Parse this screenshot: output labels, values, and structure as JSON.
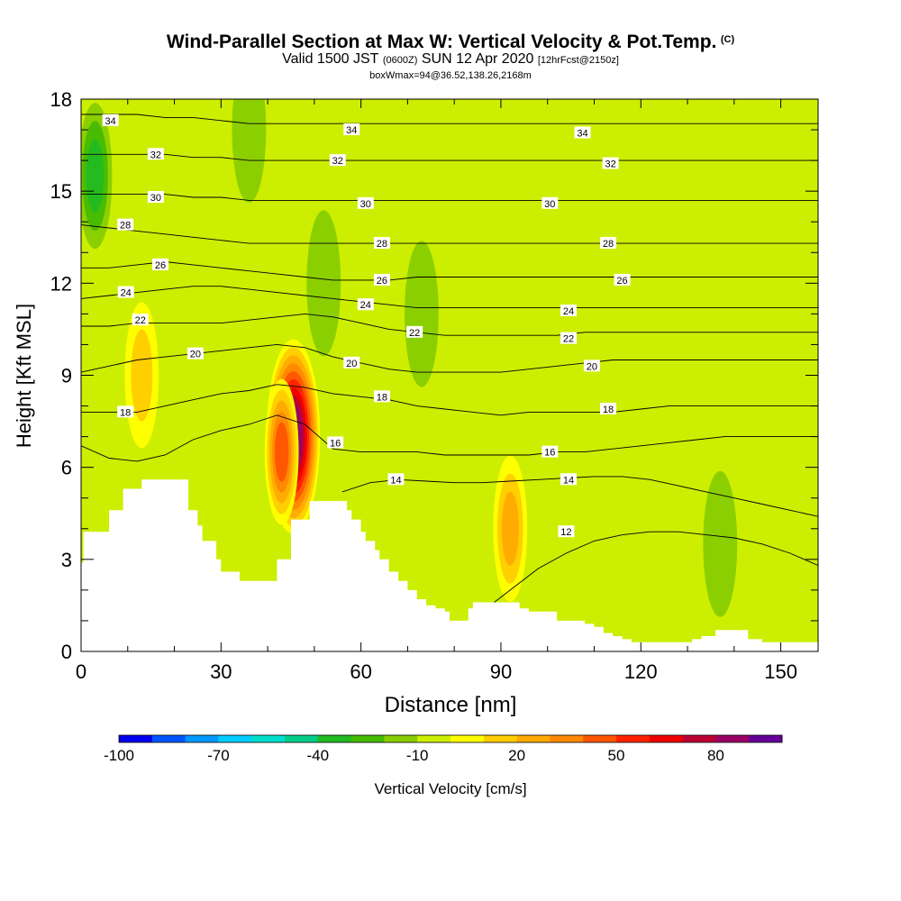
{
  "title": {
    "main": "Wind-Parallel Section at Max W: Vertical Velocity & Pot.Temp.",
    "copyright": "(C)",
    "valid_prefix": "Valid 1500 JST",
    "valid_utc": "(0600Z)",
    "valid_date": "SUN 12 Apr 2020",
    "forecast": "[12hrFcst@2150z]",
    "box_info": "boxWmax=94@36.52,138.26,2168m"
  },
  "colors": {
    "background_field": "#ccee00",
    "terrain": "#ffffff",
    "contour": "#000000"
  },
  "chart_data": {
    "type": "heatmap",
    "xlabel": "Distance [nm]",
    "ylabel": "Height [Kft MSL]",
    "xlim": [
      0,
      158
    ],
    "ylim": [
      0,
      18
    ],
    "x_ticks": [
      0,
      30,
      60,
      90,
      120,
      150
    ],
    "y_ticks": [
      0,
      3,
      6,
      9,
      12,
      15,
      18
    ],
    "colorbar": {
      "label": "Vertical Velocity [cm/s]",
      "tick_labels": [
        -100,
        -70,
        -40,
        -10,
        20,
        50,
        80
      ],
      "levels": [
        -100,
        -90,
        -80,
        -70,
        -60,
        -50,
        -40,
        -30,
        -20,
        -10,
        0,
        10,
        20,
        30,
        40,
        50,
        60,
        70,
        80,
        90
      ],
      "colors": [
        "#0000ee",
        "#0055ff",
        "#0099ff",
        "#00ccff",
        "#00ddcc",
        "#00cc88",
        "#22bb22",
        "#44bb00",
        "#88cc00",
        "#ccee00",
        "#ffff00",
        "#ffcc00",
        "#ffaa00",
        "#ff8800",
        "#ff5500",
        "#ff2200",
        "#ee0000",
        "#bb0033",
        "#990066",
        "#660099"
      ]
    },
    "max_w": 94,
    "terrain_profile": {
      "x": [
        0,
        0.5,
        3,
        6,
        7,
        9,
        10,
        13,
        16,
        18,
        20,
        22,
        23,
        25,
        26,
        29,
        30,
        32,
        34,
        36,
        38,
        40,
        42,
        44,
        45,
        46,
        48,
        49,
        51,
        53,
        55,
        57,
        58,
        60,
        61,
        63,
        64,
        66,
        68,
        70,
        72,
        74,
        76,
        78,
        79,
        81,
        83,
        84,
        87,
        88,
        92,
        94,
        96,
        100,
        102,
        106,
        108,
        110,
        112,
        114,
        116,
        118,
        120,
        122,
        124,
        126,
        128,
        131,
        133,
        136,
        138,
        141,
        143,
        146,
        148,
        153,
        158
      ],
      "y": [
        2.9,
        3.9,
        3.9,
        4.6,
        4.6,
        5.3,
        5.3,
        5.6,
        5.6,
        5.6,
        5.6,
        5.6,
        4.6,
        4.1,
        3.6,
        3.0,
        2.6,
        2.6,
        2.3,
        2.3,
        2.3,
        2.3,
        3.0,
        3.0,
        4.3,
        4.3,
        4.3,
        4.9,
        4.9,
        4.9,
        4.9,
        4.6,
        4.3,
        3.9,
        3.6,
        3.3,
        3.0,
        2.6,
        2.3,
        2.0,
        1.7,
        1.5,
        1.4,
        1.3,
        1.0,
        1.0,
        1.4,
        1.6,
        1.6,
        1.6,
        1.6,
        1.4,
        1.3,
        1.3,
        1.0,
        1.0,
        0.9,
        0.8,
        0.6,
        0.5,
        0.4,
        0.3,
        0.3,
        0.3,
        0.3,
        0.3,
        0.3,
        0.4,
        0.5,
        0.7,
        0.7,
        0.7,
        0.4,
        0.3,
        0.3,
        0.3,
        0.3
      ]
    },
    "w_features": [
      {
        "x": 45.5,
        "y": 7.0,
        "peak": 94
      },
      {
        "x": 43.0,
        "y": 6.5,
        "peak": 45
      },
      {
        "x": 13.0,
        "y": 9.0,
        "peak": 20
      },
      {
        "x": 3.0,
        "y": 15.5,
        "peak": -35
      },
      {
        "x": 36.0,
        "y": 17.0,
        "peak": -20
      },
      {
        "x": 52.0,
        "y": 12.0,
        "peak": -20
      },
      {
        "x": 73.0,
        "y": 11.0,
        "peak": -20
      },
      {
        "x": 92.0,
        "y": 4.0,
        "peak": 25
      },
      {
        "x": 137.0,
        "y": 3.5,
        "peak": -20
      }
    ],
    "theta_contours": [
      {
        "label": "12",
        "x": [
          86,
          92,
          98,
          104,
          110,
          116,
          122,
          128,
          134,
          140,
          146,
          152,
          158
        ],
        "y": [
          1.3,
          2.0,
          2.7,
          3.2,
          3.6,
          3.8,
          3.9,
          3.9,
          3.8,
          3.7,
          3.5,
          3.2,
          2.8
        ]
      },
      {
        "label": "14",
        "x": [
          56,
          62,
          68,
          74,
          80,
          86,
          92,
          98,
          104,
          110,
          116,
          122,
          128,
          134,
          140,
          146,
          152,
          158
        ],
        "y": [
          5.2,
          5.5,
          5.6,
          5.55,
          5.5,
          5.5,
          5.55,
          5.6,
          5.65,
          5.7,
          5.7,
          5.6,
          5.4,
          5.2,
          5.0,
          4.8,
          4.6,
          4.4
        ]
      },
      {
        "label": "16",
        "x": [
          0,
          6,
          12,
          18,
          24,
          30,
          36,
          42,
          48,
          54,
          60,
          66,
          72,
          78,
          84,
          90,
          96,
          102,
          108,
          114,
          120,
          126,
          132,
          138,
          144,
          150,
          158
        ],
        "y": [
          6.7,
          6.3,
          6.2,
          6.4,
          6.9,
          7.2,
          7.4,
          7.7,
          7.4,
          6.6,
          6.5,
          6.5,
          6.5,
          6.4,
          6.4,
          6.4,
          6.4,
          6.5,
          6.5,
          6.6,
          6.7,
          6.8,
          6.9,
          7.0,
          7.0,
          7.0,
          7.0
        ]
      },
      {
        "label": "18",
        "x": [
          0,
          6,
          12,
          18,
          24,
          30,
          36,
          42,
          48,
          54,
          60,
          66,
          72,
          78,
          84,
          90,
          96,
          102,
          108,
          114,
          120,
          126,
          132,
          138,
          144,
          150,
          158
        ],
        "y": [
          7.8,
          7.8,
          7.8,
          8.0,
          8.2,
          8.4,
          8.5,
          8.7,
          8.6,
          8.4,
          8.3,
          8.2,
          8.0,
          7.9,
          7.8,
          7.7,
          7.8,
          7.8,
          7.8,
          7.8,
          7.9,
          8.0,
          8.0,
          8.0,
          8.0,
          8.0,
          8.0
        ]
      },
      {
        "label": "20",
        "x": [
          0,
          6,
          12,
          18,
          24,
          30,
          36,
          42,
          48,
          54,
          60,
          66,
          72,
          78,
          84,
          90,
          96,
          102,
          108,
          114,
          120,
          126,
          132,
          138,
          144,
          150,
          158
        ],
        "y": [
          9.1,
          9.3,
          9.5,
          9.6,
          9.7,
          9.8,
          9.9,
          10.0,
          9.9,
          9.6,
          9.4,
          9.2,
          9.1,
          9.1,
          9.1,
          9.1,
          9.2,
          9.3,
          9.4,
          9.5,
          9.5,
          9.5,
          9.5,
          9.5,
          9.5,
          9.5,
          9.5
        ]
      },
      {
        "label": "22",
        "x": [
          0,
          6,
          12,
          18,
          24,
          30,
          36,
          42,
          48,
          54,
          60,
          66,
          72,
          78,
          84,
          90,
          96,
          102,
          108,
          114,
          120,
          126,
          132,
          138,
          144,
          150,
          158
        ],
        "y": [
          10.6,
          10.6,
          10.7,
          10.7,
          10.7,
          10.7,
          10.8,
          10.9,
          11.0,
          10.9,
          10.7,
          10.5,
          10.4,
          10.3,
          10.3,
          10.3,
          10.3,
          10.3,
          10.4,
          10.4,
          10.4,
          10.4,
          10.4,
          10.4,
          10.4,
          10.4,
          10.4
        ]
      },
      {
        "label": "24",
        "x": [
          0,
          6,
          12,
          18,
          24,
          30,
          36,
          42,
          48,
          54,
          60,
          66,
          72,
          78,
          84,
          90,
          96,
          102,
          108,
          114,
          120,
          126,
          132,
          138,
          144,
          150,
          158
        ],
        "y": [
          11.5,
          11.6,
          11.7,
          11.8,
          11.9,
          11.9,
          11.8,
          11.7,
          11.6,
          11.5,
          11.4,
          11.3,
          11.2,
          11.2,
          11.2,
          11.2,
          11.2,
          11.2,
          11.2,
          11.2,
          11.2,
          11.2,
          11.2,
          11.2,
          11.2,
          11.2,
          11.2
        ]
      },
      {
        "label": "26",
        "x": [
          0,
          6,
          12,
          18,
          24,
          30,
          36,
          42,
          48,
          54,
          60,
          66,
          72,
          78,
          84,
          90,
          96,
          102,
          108,
          114,
          120,
          126,
          132,
          138,
          144,
          150,
          158
        ],
        "y": [
          12.5,
          12.5,
          12.6,
          12.7,
          12.6,
          12.5,
          12.4,
          12.3,
          12.2,
          12.1,
          12.1,
          12.1,
          12.2,
          12.2,
          12.2,
          12.2,
          12.2,
          12.2,
          12.2,
          12.2,
          12.2,
          12.2,
          12.2,
          12.2,
          12.2,
          12.2,
          12.2
        ]
      },
      {
        "label": "28",
        "x": [
          0,
          6,
          12,
          18,
          24,
          30,
          36,
          42,
          48,
          54,
          60,
          66,
          72,
          78,
          84,
          90,
          96,
          102,
          108,
          114,
          120,
          126,
          132,
          138,
          144,
          150,
          158
        ],
        "y": [
          13.9,
          13.8,
          13.7,
          13.6,
          13.5,
          13.4,
          13.3,
          13.3,
          13.3,
          13.3,
          13.3,
          13.3,
          13.3,
          13.3,
          13.3,
          13.3,
          13.3,
          13.3,
          13.3,
          13.3,
          13.3,
          13.3,
          13.3,
          13.3,
          13.3,
          13.3,
          13.3
        ]
      },
      {
        "label": "30",
        "x": [
          0,
          6,
          12,
          18,
          24,
          30,
          36,
          42,
          48,
          54,
          60,
          66,
          72,
          78,
          84,
          90,
          96,
          102,
          108,
          114,
          120,
          126,
          132,
          138,
          144,
          150,
          158
        ],
        "y": [
          14.9,
          14.9,
          14.9,
          14.9,
          14.8,
          14.8,
          14.7,
          14.7,
          14.7,
          14.7,
          14.7,
          14.7,
          14.7,
          14.7,
          14.7,
          14.7,
          14.7,
          14.7,
          14.7,
          14.7,
          14.7,
          14.7,
          14.7,
          14.7,
          14.7,
          14.7,
          14.7
        ]
      },
      {
        "label": "32",
        "x": [
          0,
          6,
          12,
          18,
          24,
          30,
          36,
          42,
          48,
          54,
          60,
          66,
          72,
          78,
          84,
          90,
          96,
          102,
          108,
          114,
          120,
          126,
          132,
          138,
          144,
          150,
          158
        ],
        "y": [
          16.2,
          16.2,
          16.2,
          16.2,
          16.1,
          16.1,
          16.0,
          16.0,
          16.0,
          16.0,
          16.0,
          16.0,
          16.0,
          16.0,
          16.0,
          16.0,
          16.0,
          16.0,
          16.0,
          16.0,
          16.0,
          16.0,
          16.0,
          16.0,
          16.0,
          16.0,
          16.0
        ]
      },
      {
        "label": "34",
        "x": [
          0,
          6,
          12,
          18,
          24,
          30,
          36,
          42,
          48,
          54,
          60,
          66,
          72,
          78,
          84,
          90,
          96,
          102,
          108,
          114,
          120,
          126,
          132,
          138,
          144,
          150,
          158
        ],
        "y": [
          17.5,
          17.5,
          17.5,
          17.4,
          17.4,
          17.3,
          17.2,
          17.2,
          17.2,
          17.2,
          17.2,
          17.2,
          17.2,
          17.2,
          17.2,
          17.2,
          17.2,
          17.2,
          17.2,
          17.2,
          17.2,
          17.2,
          17.2,
          17.2,
          17.2,
          17.2,
          17.2
        ]
      }
    ],
    "contour_labels": [
      {
        "text": "34",
        "x": 6.3,
        "y": 17.3
      },
      {
        "text": "34",
        "x": 58.0,
        "y": 17.0
      },
      {
        "text": "34",
        "x": 107.5,
        "y": 16.9
      },
      {
        "text": "32",
        "x": 16.0,
        "y": 16.2
      },
      {
        "text": "32",
        "x": 55.0,
        "y": 16.0
      },
      {
        "text": "32",
        "x": 113.5,
        "y": 15.9
      },
      {
        "text": "30",
        "x": 16.0,
        "y": 14.8
      },
      {
        "text": "30",
        "x": 61.0,
        "y": 14.6
      },
      {
        "text": "30",
        "x": 100.5,
        "y": 14.6
      },
      {
        "text": "28",
        "x": 9.5,
        "y": 13.9
      },
      {
        "text": "28",
        "x": 64.5,
        "y": 13.3
      },
      {
        "text": "28",
        "x": 113.0,
        "y": 13.3
      },
      {
        "text": "26",
        "x": 17.0,
        "y": 12.6
      },
      {
        "text": "26",
        "x": 64.5,
        "y": 12.1
      },
      {
        "text": "26",
        "x": 116.0,
        "y": 12.1
      },
      {
        "text": "24",
        "x": 9.6,
        "y": 11.7
      },
      {
        "text": "24",
        "x": 61.0,
        "y": 11.3
      },
      {
        "text": "24",
        "x": 104.5,
        "y": 11.1
      },
      {
        "text": "22",
        "x": 12.7,
        "y": 10.8
      },
      {
        "text": "22",
        "x": 71.5,
        "y": 10.4
      },
      {
        "text": "22",
        "x": 104.5,
        "y": 10.2
      },
      {
        "text": "20",
        "x": 24.5,
        "y": 9.7
      },
      {
        "text": "20",
        "x": 58.0,
        "y": 9.4
      },
      {
        "text": "20",
        "x": 109.5,
        "y": 9.3
      },
      {
        "text": "18",
        "x": 9.5,
        "y": 7.8
      },
      {
        "text": "18",
        "x": 64.5,
        "y": 8.3
      },
      {
        "text": "18",
        "x": 113.0,
        "y": 7.9
      },
      {
        "text": "16",
        "x": 54.5,
        "y": 6.8
      },
      {
        "text": "16",
        "x": 100.5,
        "y": 6.5
      },
      {
        "text": "14",
        "x": 67.5,
        "y": 5.6
      },
      {
        "text": "14",
        "x": 104.5,
        "y": 5.6
      },
      {
        "text": "12",
        "x": 104.0,
        "y": 3.9
      }
    ]
  }
}
